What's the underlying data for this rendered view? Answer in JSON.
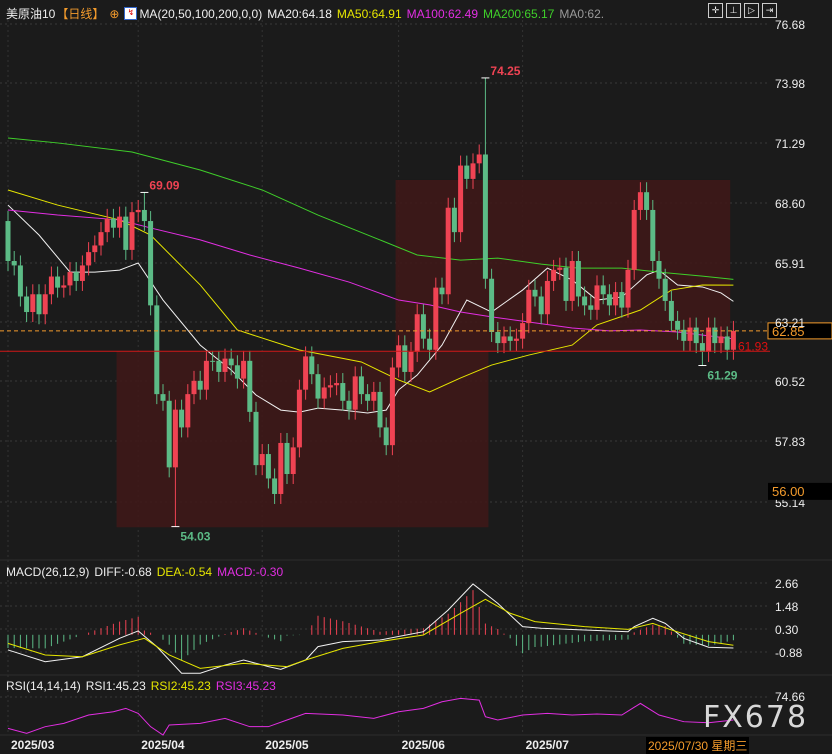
{
  "header": {
    "symbol": "美原油10",
    "period": "【日线】",
    "ma_title": "MA(20,50,100,200,0,0)",
    "ma20": "MA20:64.18",
    "ma50": "MA50:64.91",
    "ma100": "MA100:62.49",
    "ma200": "MA200:65.17",
    "ma0": "MA0:62."
  },
  "toolbar_icons": [
    "crosshair-icon",
    "zoom-range-icon",
    "play-icon",
    "goto-end-icon"
  ],
  "macd_header": {
    "title": "MACD(26,12,9)",
    "diff": "DIFF:-0.68",
    "dea": "DEA:-0.54",
    "macd": "MACD:-0.30"
  },
  "rsi_header": {
    "title": "RSI(14,14,14)",
    "rsi1": "RSI1:45.23",
    "rsi2": "RSI2:45.23",
    "rsi3": "RSI3:45.23"
  },
  "last_date": "2025/07/30 星期三",
  "watermark": "FX678",
  "colors": {
    "up": "#ef4353",
    "down": "#5cbb86",
    "ma20": "#f2f2f2",
    "ma50": "#e6e600",
    "ma100": "#e22ee2",
    "ma200": "#3fcf2a",
    "box": "#3e1818",
    "current": "#f39b2c"
  },
  "chart_data": [
    {
      "type": "candlestick",
      "price_axis_ticks": [
        "76.68",
        "73.98",
        "71.29",
        "68.60",
        "65.91",
        "63.21",
        "60.52",
        "57.83",
        "55.14"
      ],
      "ylim": [
        55.14,
        76.68
      ],
      "date_ticks": [
        {
          "label": "2025/03",
          "index": 0
        },
        {
          "label": "2025/04",
          "index": 21
        },
        {
          "label": "2025/05",
          "index": 41
        },
        {
          "label": "2025/06",
          "index": 63
        },
        {
          "label": "2025/07",
          "index": 83
        }
      ],
      "close": [
        66.0,
        65.8,
        64.4,
        63.7,
        64.5,
        63.6,
        64.5,
        65.3,
        64.8,
        64.9,
        65.5,
        65.1,
        65.8,
        66.4,
        66.7,
        67.3,
        67.9,
        67.5,
        68.0,
        66.5,
        68.2,
        68.3,
        67.8,
        64.0,
        60.0,
        59.7,
        56.7,
        59.3,
        58.5,
        60.0,
        60.6,
        60.2,
        61.5,
        61.5,
        61.0,
        61.6,
        61.3,
        60.7,
        61.5,
        59.2,
        56.8,
        57.3,
        56.2,
        55.5,
        57.8,
        56.4,
        57.6,
        60.2,
        61.7,
        60.9,
        59.8,
        60.3,
        60.4,
        60.5,
        59.7,
        59.3,
        60.8,
        60.0,
        59.7,
        60.1,
        58.5,
        57.7,
        61.2,
        62.2,
        61.0,
        61.9,
        63.6,
        62.5,
        62.0,
        64.8,
        64.5,
        68.4,
        67.3,
        70.3,
        69.7,
        70.4,
        70.8,
        65.2,
        62.8,
        62.3,
        62.6,
        62.4,
        62.5,
        63.2,
        64.7,
        64.4,
        63.6,
        65.1,
        65.6,
        65.7,
        64.2,
        66.0,
        64.4,
        64.0,
        63.8,
        64.9,
        64.5,
        64.0,
        64.6,
        63.9,
        65.6,
        68.3,
        69.1,
        68.3,
        66.0,
        65.2,
        64.2,
        63.3,
        62.9,
        62.4,
        63.0,
        62.3,
        61.9,
        63.0,
        62.3,
        62.6,
        62.0,
        62.85
      ],
      "first_open": 67.8,
      "extremes": [
        {
          "index": 22,
          "high": 69.09,
          "label": "69.09"
        },
        {
          "index": 27,
          "low": 54.03,
          "label": "54.03"
        },
        {
          "index": 77,
          "high": 74.25,
          "label": "74.25"
        },
        {
          "index": 112,
          "low": 61.29,
          "label": "61.29"
        }
      ],
      "current_price": {
        "value": 62.85,
        "label": "62.85"
      },
      "hline": {
        "value": 61.93,
        "label": "61.93"
      },
      "marker_label": {
        "value": 56.0,
        "label": "56.00"
      },
      "boxes": [
        {
          "from": 18,
          "to": 77,
          "top": 61.93,
          "bottom": 54.0
        },
        {
          "from": 63,
          "to": 116,
          "top": 69.65,
          "bottom": 61.93
        }
      ],
      "ma": {
        "ma20": [
          [
            0,
            68.52
          ],
          [
            5,
            67.17
          ],
          [
            10,
            65.5
          ],
          [
            14,
            65.5
          ],
          [
            18,
            65.59
          ],
          [
            21,
            65.91
          ],
          [
            25,
            64.24
          ],
          [
            31,
            62.21
          ],
          [
            36,
            61.09
          ],
          [
            40,
            59.96
          ],
          [
            44,
            59.28
          ],
          [
            47,
            59.19
          ],
          [
            50,
            59.37
          ],
          [
            54,
            59.28
          ],
          [
            58,
            59.15
          ],
          [
            61,
            59.28
          ],
          [
            63,
            60.19
          ],
          [
            66,
            60.86
          ],
          [
            70,
            62.21
          ],
          [
            74,
            64.24
          ],
          [
            78,
            63.7
          ],
          [
            83,
            64.69
          ],
          [
            87,
            65.68
          ],
          [
            91,
            65.14
          ],
          [
            95,
            64.24
          ],
          [
            99,
            64.38
          ],
          [
            103,
            65.37
          ],
          [
            105,
            65.59
          ],
          [
            108,
            64.92
          ],
          [
            112,
            64.83
          ],
          [
            115,
            64.56
          ],
          [
            117,
            64.18
          ]
        ],
        "ma50": [
          [
            0,
            69.2
          ],
          [
            8,
            68.52
          ],
          [
            18,
            67.85
          ],
          [
            23,
            67.17
          ],
          [
            31,
            64.92
          ],
          [
            37,
            62.89
          ],
          [
            47,
            61.99
          ],
          [
            57,
            61.45
          ],
          [
            63,
            60.64
          ],
          [
            68,
            60.1
          ],
          [
            73,
            60.73
          ],
          [
            78,
            61.31
          ],
          [
            84,
            61.76
          ],
          [
            91,
            62.21
          ],
          [
            95,
            63.12
          ],
          [
            102,
            63.79
          ],
          [
            107,
            64.69
          ],
          [
            112,
            64.92
          ],
          [
            117,
            64.91
          ]
        ],
        "ma100": [
          [
            0,
            68.3
          ],
          [
            8,
            68.07
          ],
          [
            18,
            67.85
          ],
          [
            23,
            67.49
          ],
          [
            31,
            66.95
          ],
          [
            39,
            66.27
          ],
          [
            47,
            65.68
          ],
          [
            55,
            65.05
          ],
          [
            63,
            64.24
          ],
          [
            68,
            64.02
          ],
          [
            73,
            63.7
          ],
          [
            78,
            63.48
          ],
          [
            84,
            63.25
          ],
          [
            91,
            62.98
          ],
          [
            97,
            62.85
          ],
          [
            102,
            62.89
          ],
          [
            108,
            62.8
          ],
          [
            117,
            62.49
          ]
        ],
        "ma200": [
          [
            0,
            71.54
          ],
          [
            8,
            71.32
          ],
          [
            20,
            70.91
          ],
          [
            31,
            70.1
          ],
          [
            41,
            69.2
          ],
          [
            50,
            68.07
          ],
          [
            60,
            66.95
          ],
          [
            66,
            66.27
          ],
          [
            73,
            66.04
          ],
          [
            79,
            66.13
          ],
          [
            86,
            65.86
          ],
          [
            92,
            65.68
          ],
          [
            99,
            65.68
          ],
          [
            105,
            65.5
          ],
          [
            112,
            65.32
          ],
          [
            117,
            65.17
          ]
        ]
      }
    },
    {
      "type": "macd",
      "axis_ticks": [
        "2.66",
        "1.48",
        "0.30",
        "-0.88"
      ],
      "diff": [
        [
          0,
          -0.78
        ],
        [
          6,
          -1.39
        ],
        [
          12,
          -1.13
        ],
        [
          18,
          -0.18
        ],
        [
          21,
          0.2
        ],
        [
          24,
          -0.61
        ],
        [
          28,
          -1.98
        ],
        [
          31,
          -1.98
        ],
        [
          35,
          -1.56
        ],
        [
          38,
          -1.3
        ],
        [
          42,
          -1.64
        ],
        [
          44,
          -1.78
        ],
        [
          48,
          -1.3
        ],
        [
          50,
          -0.61
        ],
        [
          54,
          -0.35
        ],
        [
          60,
          -0.27
        ],
        [
          67,
          0.16
        ],
        [
          71,
          1.28
        ],
        [
          75,
          2.62
        ],
        [
          79,
          1.62
        ],
        [
          83,
          0.42
        ],
        [
          86,
          0.34
        ],
        [
          93,
          0.25
        ],
        [
          100,
          0.16
        ],
        [
          101,
          0.42
        ],
        [
          104,
          0.85
        ],
        [
          106,
          0.59
        ],
        [
          109,
          -0.18
        ],
        [
          113,
          -0.64
        ],
        [
          117,
          -0.68
        ]
      ],
      "dea": [
        [
          0,
          -0.44
        ],
        [
          6,
          -1.04
        ],
        [
          12,
          -1.13
        ],
        [
          18,
          -0.52
        ],
        [
          22,
          -0.18
        ],
        [
          26,
          -1.04
        ],
        [
          31,
          -1.73
        ],
        [
          38,
          -1.47
        ],
        [
          45,
          -1.64
        ],
        [
          48,
          -1.3
        ],
        [
          54,
          -0.7
        ],
        [
          60,
          -0.35
        ],
        [
          67,
          -0.01
        ],
        [
          73,
          1.11
        ],
        [
          77,
          1.83
        ],
        [
          81,
          1.11
        ],
        [
          85,
          0.68
        ],
        [
          93,
          0.42
        ],
        [
          100,
          0.28
        ],
        [
          104,
          0.59
        ],
        [
          107,
          0.25
        ],
        [
          113,
          -0.35
        ],
        [
          117,
          -0.54
        ]
      ]
    },
    {
      "type": "line",
      "axis_ticks": [
        "74.66"
      ],
      "rsi": [
        [
          0,
          34.7
        ],
        [
          3,
          28.3
        ],
        [
          6,
          36.8
        ],
        [
          9,
          41.0
        ],
        [
          13,
          51.5
        ],
        [
          17,
          55.7
        ],
        [
          19,
          59.9
        ],
        [
          21,
          53.6
        ],
        [
          23,
          36.8
        ],
        [
          25,
          26.2
        ],
        [
          26,
          38.9
        ],
        [
          31,
          41.0
        ],
        [
          35,
          47.3
        ],
        [
          39,
          36.8
        ],
        [
          42,
          36.8
        ],
        [
          45,
          45.2
        ],
        [
          48,
          53.6
        ],
        [
          54,
          51.5
        ],
        [
          59,
          47.3
        ],
        [
          63,
          55.7
        ],
        [
          67,
          59.9
        ],
        [
          70,
          68.3
        ],
        [
          73,
          72.6
        ],
        [
          76,
          70.4
        ],
        [
          77,
          49.4
        ],
        [
          79,
          45.2
        ],
        [
          83,
          51.5
        ],
        [
          87,
          53.6
        ],
        [
          91,
          51.5
        ],
        [
          95,
          52.8
        ],
        [
          99,
          51.5
        ],
        [
          102,
          66.2
        ],
        [
          105,
          51.5
        ],
        [
          109,
          43.1
        ],
        [
          113,
          41.8
        ],
        [
          117,
          45.23
        ]
      ]
    }
  ]
}
